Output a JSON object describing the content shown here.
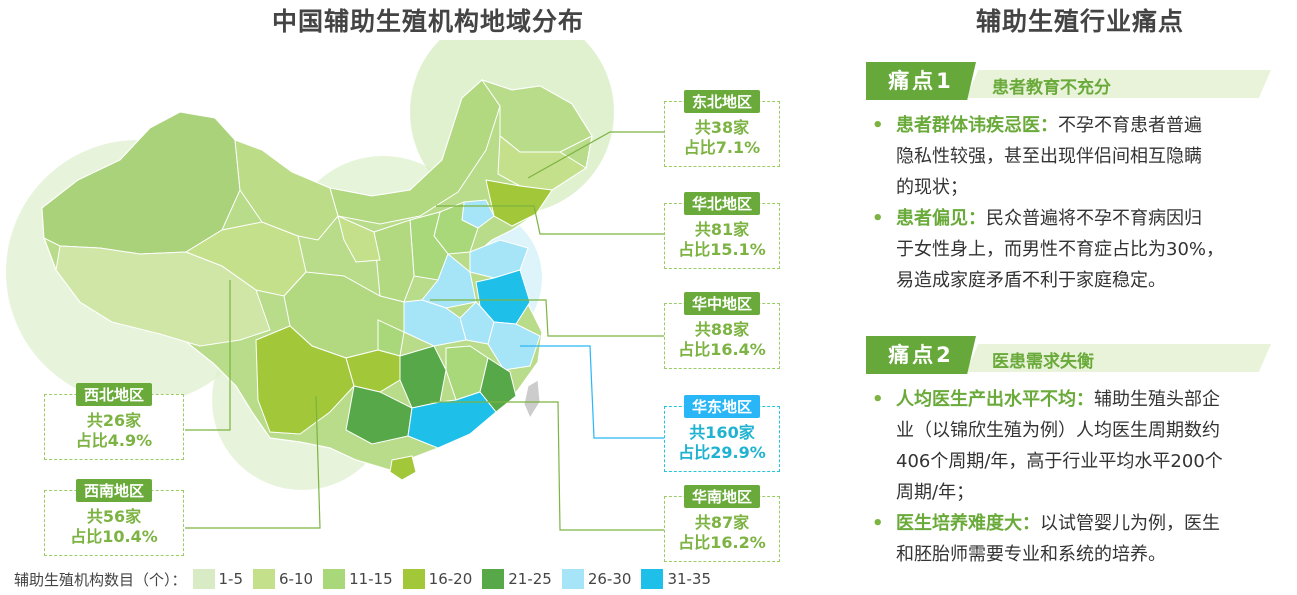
{
  "map": {
    "title": "中国辅助生殖机构地域分布",
    "regions": [
      {
        "key": "northeast",
        "name": "东北地区",
        "count": "共38家",
        "share": "占比7.1%",
        "accent": "green"
      },
      {
        "key": "north",
        "name": "华北地区",
        "count": "共81家",
        "share": "占比15.1%",
        "accent": "green"
      },
      {
        "key": "central",
        "name": "华中地区",
        "count": "共88家",
        "share": "占比16.4%",
        "accent": "green"
      },
      {
        "key": "east",
        "name": "华东地区",
        "count": "共160家",
        "share": "占比29.9%",
        "accent": "blue"
      },
      {
        "key": "south",
        "name": "华南地区",
        "count": "共87家",
        "share": "占比16.2%",
        "accent": "green"
      },
      {
        "key": "northwest",
        "name": "西北地区",
        "count": "共26家",
        "share": "占比4.9%",
        "accent": "green"
      },
      {
        "key": "southwest",
        "name": "西南地区",
        "count": "共56家",
        "share": "占比10.4%",
        "accent": "green"
      }
    ],
    "legend": {
      "label": "辅助生殖机构数目（个）：",
      "items": [
        {
          "label": "1-5",
          "color": "#d9ebc4"
        },
        {
          "label": "6-10",
          "color": "#c5e08a"
        },
        {
          "label": "11-15",
          "color": "#a8d87a"
        },
        {
          "label": "16-20",
          "color": "#a2c83a"
        },
        {
          "label": "21-25",
          "color": "#56a848"
        },
        {
          "label": "26-30",
          "color": "#a6e4f7"
        },
        {
          "label": "31-35",
          "color": "#1ec0ea"
        }
      ]
    }
  },
  "pain_points": {
    "title": "辅助生殖行业痛点",
    "items": [
      {
        "tag": "痛点1",
        "subtitle": "患者教育不充分",
        "bullets": [
          {
            "keyword": "患者群体讳疾忌医：",
            "lines": [
              "不孕不育患者普遍",
              "隐私性较强，甚至出现伴侣间相互隐瞒",
              "的现状；"
            ]
          },
          {
            "keyword": "患者偏见：",
            "lines": [
              "民众普遍将不孕不育病因归",
              "于女性身上，而男性不育症占比为30%，",
              "易造成家庭矛盾不利于家庭稳定。"
            ]
          }
        ]
      },
      {
        "tag": "痛点2",
        "subtitle": "医患需求失衡",
        "bullets": [
          {
            "keyword": "人均医生产出水平不均：",
            "lines": [
              "辅助生殖头部企",
              "业（以锦欣生殖为例）人均医生周期数约",
              "406个周期/年，高于行业平均水平200个",
              "周期/年；"
            ]
          },
          {
            "keyword": "医生培养难度大：",
            "lines": [
              "以试管婴儿为例，医生",
              "和胚胎师需要专业和系统的培养。"
            ]
          }
        ]
      }
    ]
  }
}
